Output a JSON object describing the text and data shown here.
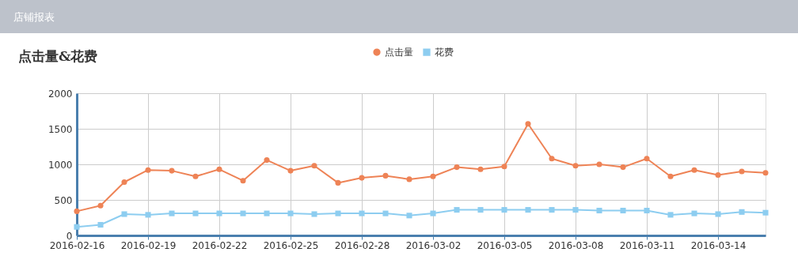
{
  "chart_data": {
    "type": "line",
    "title": "点击量&花费",
    "annotations": [
      "店铺报表"
    ],
    "categories": [
      "2016-02-16",
      null,
      null,
      "2016-02-19",
      null,
      null,
      "2016-02-22",
      null,
      null,
      "2016-02-25",
      null,
      null,
      "2016-02-28",
      null,
      null,
      "2016-03-02",
      null,
      null,
      "2016-03-05",
      null,
      null,
      "2016-03-08",
      null,
      null,
      "2016-03-11",
      null,
      null,
      "2016-03-14",
      null,
      null
    ],
    "series": [
      {
        "name": "点击量",
        "color": "#ee8356",
        "marker": "circle",
        "values": [
          340,
          420,
          750,
          920,
          910,
          830,
          930,
          770,
          1060,
          910,
          980,
          740,
          810,
          840,
          790,
          830,
          960,
          930,
          970,
          1570,
          1080,
          980,
          1000,
          960,
          1080,
          830,
          920,
          850,
          900,
          880
        ]
      },
      {
        "name": "花费",
        "color": "#8dcdf0",
        "marker": "square",
        "values": [
          120,
          150,
          300,
          290,
          310,
          310,
          310,
          310,
          310,
          310,
          300,
          310,
          310,
          310,
          280,
          310,
          360,
          360,
          360,
          360,
          360,
          360,
          350,
          350,
          350,
          290,
          310,
          300,
          330,
          320
        ]
      }
    ],
    "ylim": [
      0,
      2000
    ],
    "yticks": [
      0,
      500,
      1000,
      1500,
      2000
    ],
    "grid": true,
    "legend": "top",
    "line_style": "solid"
  }
}
